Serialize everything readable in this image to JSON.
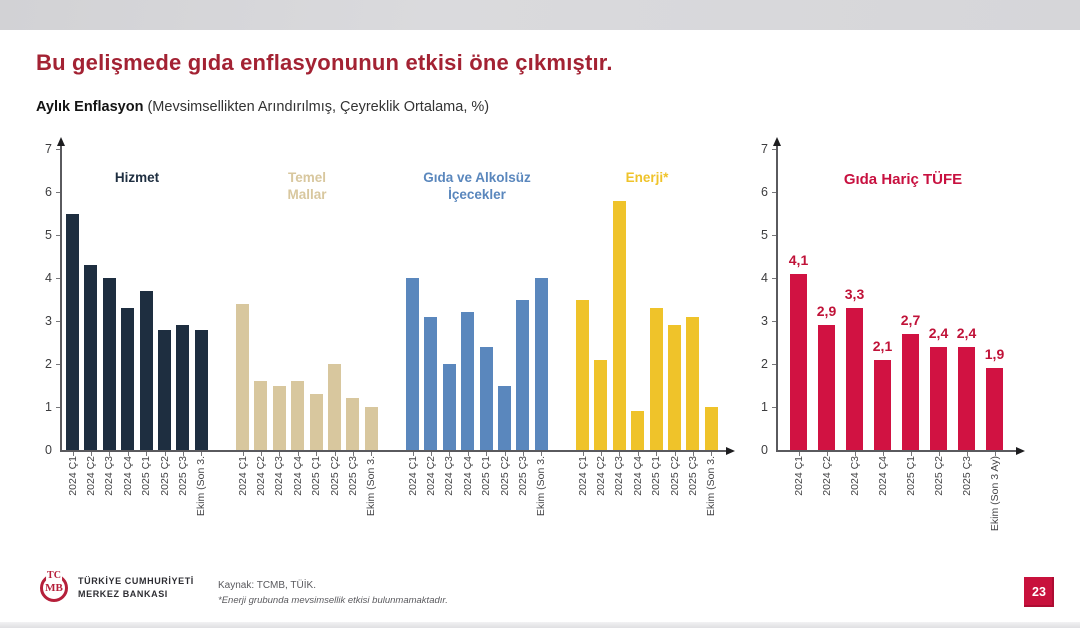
{
  "slide": {
    "title": "Bu gelişmede gıda enflasyonunun etkisi öne çıkmıştır.",
    "subtitle_bold": "Aylık Enflasyon",
    "subtitle_rest": " (Mevsimsellikten Arındırılmış, Çeyreklik Ortalama, %)",
    "page_number": "23"
  },
  "footer": {
    "logo_monogram_top": "TC",
    "logo_monogram": "MB",
    "logo_line1": "TÜRKİYE CUMHURİYETİ",
    "logo_line2": "MERKEZ BANKASI",
    "source": "Kaynak: TCMB, TÜİK.",
    "footnote": "*Enerji grubunda mevsimsellik etkisi bulunmamaktadır."
  },
  "colors": {
    "title_red": "#a32233",
    "hizmet_navy": "#1e2e40",
    "temel_tan": "#d8c79e",
    "gida_blue": "#5a87bd",
    "enerji_yellow": "#efc32a",
    "tufe_red": "#d11242",
    "value_label_red": "#c01238",
    "badge_red": "#c8113c"
  },
  "chart_data": [
    {
      "id": "monthly-inflation-by-group",
      "type": "bar",
      "title": "Aylık Enflasyon (Mevsimsellikten Arındırılmış, Çeyreklik Ortalama, %)",
      "ylim": [
        0,
        7
      ],
      "yticks": [
        "0",
        "1",
        "2",
        "3",
        "4",
        "5",
        "6",
        "7"
      ],
      "grid": false,
      "categories": [
        "2024 Ç1",
        "2024 Ç2",
        "2024 Ç3",
        "2024 Ç4",
        "2025 Ç1",
        "2025 Ç2",
        "2025 Ç3",
        "Ekim (Son 3."
      ],
      "series": [
        {
          "name": "Hizmet",
          "label_lines": "Hizmet",
          "color": "#1e2e40",
          "values": [
            5.5,
            4.3,
            4.0,
            3.3,
            3.7,
            2.8,
            2.9,
            2.8
          ]
        },
        {
          "name": "Temel Mallar",
          "label_lines": "Temel\nMallar",
          "color": "#d8c79e",
          "values": [
            3.4,
            1.6,
            1.5,
            1.6,
            1.3,
            2.0,
            1.2,
            1.0
          ]
        },
        {
          "name": "Gıda ve Alkolsüz İçecekler",
          "label_lines": "Gıda ve Alkolsüz\nİçecekler",
          "color": "#5a87bd",
          "values": [
            4.0,
            3.1,
            2.0,
            3.2,
            2.4,
            1.5,
            3.5,
            4.0
          ]
        },
        {
          "name": "Enerji*",
          "label_lines": "Enerji*",
          "color": "#efc32a",
          "values": [
            3.5,
            2.1,
            5.8,
            0.9,
            3.3,
            2.9,
            3.1,
            1.0
          ]
        }
      ]
    },
    {
      "id": "cpi-excluding-food",
      "type": "bar",
      "title": "Gıda Hariç TÜFE",
      "title_color": "#c81140",
      "ylim": [
        0,
        7
      ],
      "yticks": [
        "0",
        "1",
        "2",
        "3",
        "4",
        "5",
        "6",
        "7"
      ],
      "grid": false,
      "categories": [
        "2024 Ç1",
        "2024 Ç2",
        "2024 Ç3",
        "2024 Ç4",
        "2025 Ç1",
        "2025 Ç2",
        "2025 Ç3",
        "Ekim (Son 3 Ay)"
      ],
      "values": [
        4.1,
        2.9,
        3.3,
        2.1,
        2.7,
        2.4,
        2.4,
        1.9
      ],
      "value_labels": [
        "4,1",
        "2,9",
        "3,3",
        "2,1",
        "2,7",
        "2,4",
        "2,4",
        "1,9"
      ],
      "color": "#d11242"
    }
  ]
}
